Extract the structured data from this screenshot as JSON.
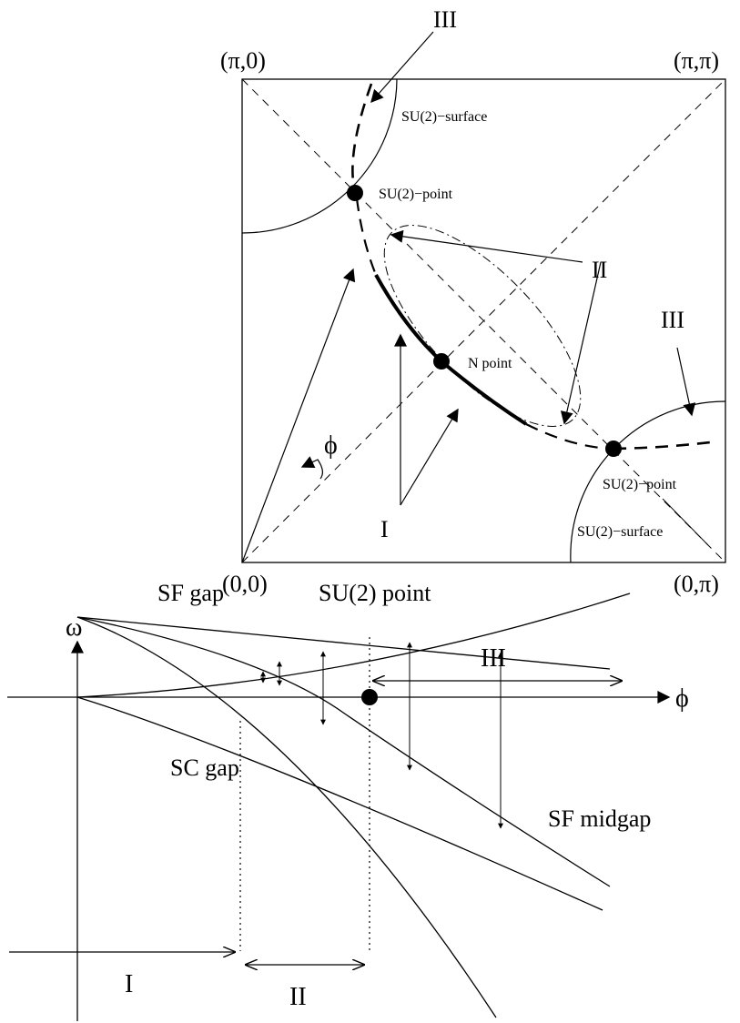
{
  "brillouin_zone": {
    "corners": {
      "top_left": "(π,0)",
      "top_right": "(π,π)",
      "bottom_left": "(0,0)",
      "bottom_right": "(0,π)"
    },
    "labels": {
      "su2_surface_top": "SU(2)−surface",
      "su2_point_top": "SU(2)−point",
      "n_point": "N point",
      "su2_point_bottom": "SU(2)−point",
      "su2_surface_bottom": "SU(2)−surface",
      "region_I": "I",
      "region_II": "II",
      "region_III_top": "III",
      "region_III_right": "III",
      "angle": "ϕ"
    }
  },
  "spectrum": {
    "omega_axis": "ω",
    "phi_axis": "ϕ",
    "sf_gap": "SF gap",
    "sc_gap": "SC gap",
    "su2_point": "SU(2) point",
    "sf_midgap": "SF midgap",
    "region_I": "I",
    "region_II": "II",
    "region_III": "III"
  }
}
